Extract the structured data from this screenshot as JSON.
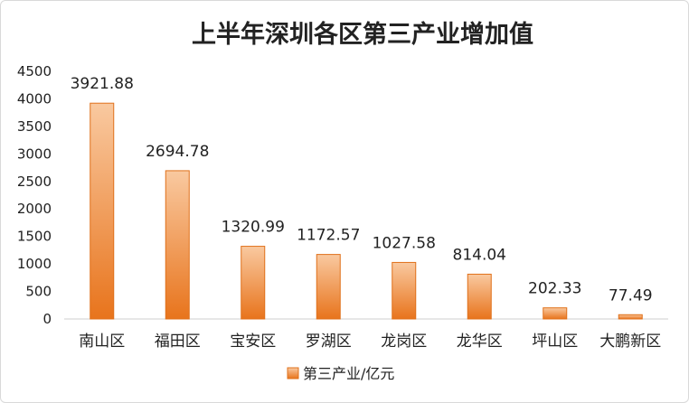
{
  "chart_data": {
    "type": "bar",
    "title": "上半年深圳各区第三产业增加值",
    "categories": [
      "南山区",
      "福田区",
      "宝安区",
      "罗湖区",
      "龙岗区",
      "龙华区",
      "坪山区",
      "大鹏新区"
    ],
    "series": [
      {
        "name": "第三产业/亿元",
        "values": [
          3921.88,
          2694.78,
          1320.99,
          1172.57,
          1027.58,
          814.04,
          202.33,
          77.49
        ],
        "labels": [
          "3921.88",
          "2694.78",
          "1320.99",
          "1172.57",
          "1027.58",
          "814.04",
          "202.33",
          "77.49"
        ]
      }
    ],
    "ylim": [
      0,
      4500
    ],
    "yticks": [
      0,
      500,
      1000,
      1500,
      2000,
      2500,
      3000,
      3500,
      4000,
      4500
    ],
    "grid": false,
    "legend_position": "bottom",
    "colors": {
      "bar_top": "#f9c9a0",
      "bar_bottom": "#e8741c",
      "bar_edge": "#e0701a",
      "axis": "#cfcfcf"
    }
  }
}
